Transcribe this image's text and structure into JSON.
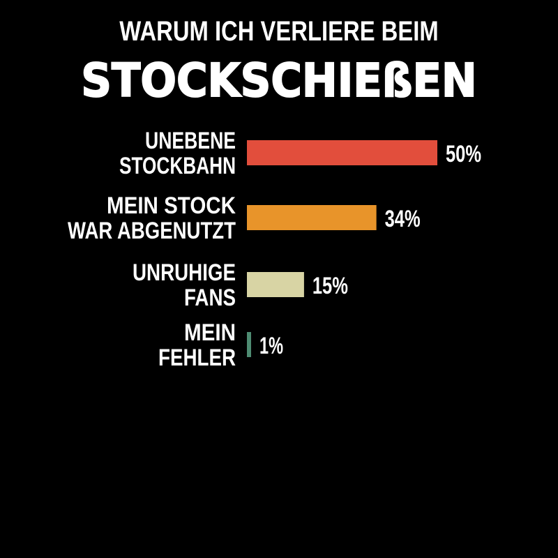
{
  "chart_data": {
    "type": "bar",
    "orientation": "horizontal",
    "title": "WARUM ICH VERLIERE BEIM",
    "subtitle": "STOCKSCHIEßEN",
    "categories": [
      [
        "UNEBENE",
        "STOCKBAHN"
      ],
      [
        "MEIN STOCK",
        "WAR ABGENUTZT"
      ],
      [
        "UNRUHIGE",
        "FANS"
      ],
      [
        "MEIN",
        "FEHLER"
      ]
    ],
    "values": [
      50,
      34,
      15,
      1
    ],
    "value_labels": [
      "50%",
      "34%",
      "15%",
      "1%"
    ],
    "colors": [
      "#e24e3c",
      "#e8942a",
      "#d8d4a4",
      "#4e8c72"
    ],
    "xlim": [
      0,
      100
    ],
    "grid": false,
    "legend": "none"
  },
  "background": "#000000",
  "text_color": "#ffffff"
}
